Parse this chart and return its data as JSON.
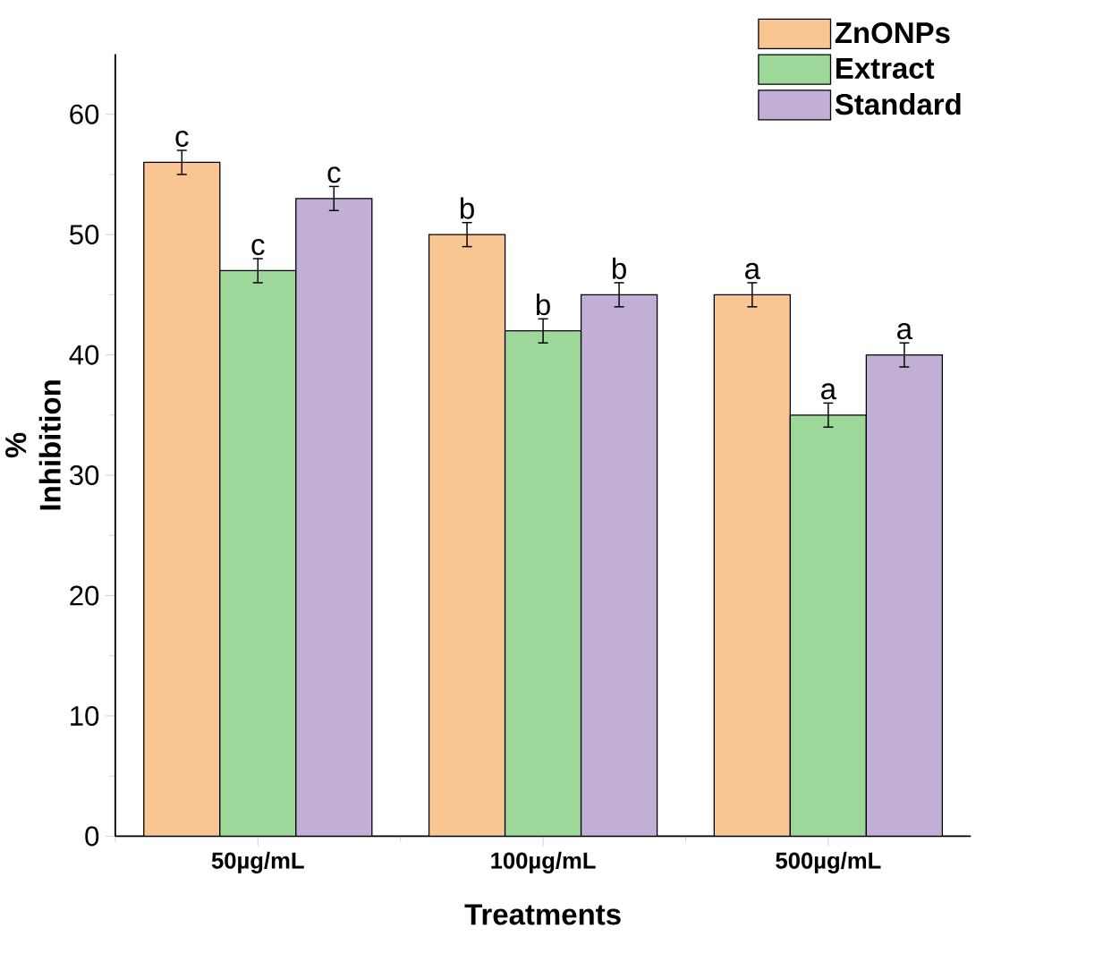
{
  "chart_data": {
    "type": "bar",
    "xlabel": "Treatments",
    "ylabel": "% Inhibition",
    "categories": [
      "50µg/mL",
      "100µg/mL",
      "500µg/mL"
    ],
    "series": [
      {
        "name": "ZnONPs",
        "color": "#f9c592",
        "values": [
          56,
          50,
          45
        ],
        "errors": [
          1,
          1,
          1
        ],
        "value_labels": [
          "c",
          "b",
          "a"
        ]
      },
      {
        "name": "Extract",
        "color": "#9dd79a",
        "values": [
          47,
          42,
          35
        ],
        "errors": [
          1,
          1,
          1
        ],
        "value_labels": [
          "c",
          "b",
          "a"
        ]
      },
      {
        "name": "Standard",
        "color": "#c1afd5",
        "values": [
          53,
          45,
          40
        ],
        "errors": [
          1,
          1,
          1
        ],
        "value_labels": [
          "c",
          "b",
          "a"
        ]
      }
    ],
    "ylim": [
      0,
      65
    ],
    "yticks": [
      0,
      10,
      20,
      30,
      40,
      50,
      60
    ],
    "legend": "top right"
  }
}
